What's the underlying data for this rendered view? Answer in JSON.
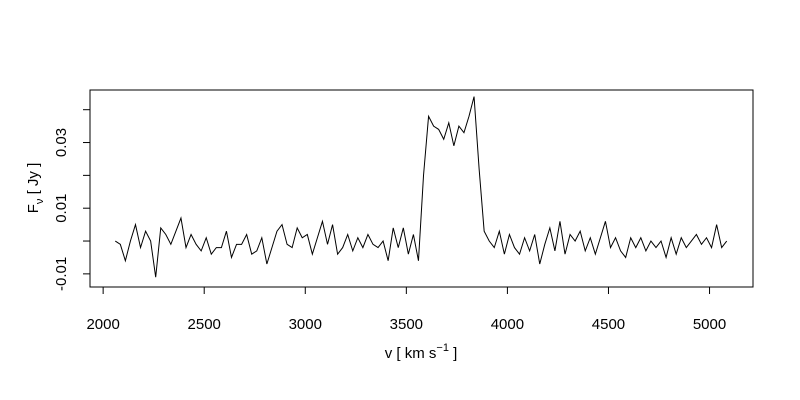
{
  "chart_data": {
    "type": "line",
    "xlabel": {
      "text": "v [ km s",
      "sup": "−1",
      "end": " ]"
    },
    "ylabel": {
      "text": "F",
      "sub": "ν",
      "end": " [ Jy ]"
    },
    "x": [
      2060,
      2085,
      2110,
      2135,
      2160,
      2185,
      2210,
      2235,
      2260,
      2285,
      2310,
      2335,
      2360,
      2385,
      2410,
      2435,
      2460,
      2485,
      2510,
      2535,
      2560,
      2585,
      2610,
      2635,
      2660,
      2685,
      2710,
      2735,
      2760,
      2785,
      2810,
      2835,
      2860,
      2885,
      2910,
      2935,
      2960,
      2985,
      3010,
      3035,
      3060,
      3085,
      3110,
      3135,
      3160,
      3185,
      3210,
      3235,
      3260,
      3285,
      3310,
      3335,
      3360,
      3385,
      3410,
      3435,
      3460,
      3485,
      3510,
      3535,
      3560,
      3585,
      3610,
      3635,
      3660,
      3685,
      3710,
      3735,
      3760,
      3785,
      3810,
      3835,
      3860,
      3885,
      3910,
      3935,
      3960,
      3985,
      4010,
      4035,
      4060,
      4085,
      4110,
      4135,
      4160,
      4185,
      4210,
      4235,
      4260,
      4285,
      4310,
      4335,
      4360,
      4385,
      4410,
      4435,
      4460,
      4485,
      4510,
      4535,
      4560,
      4585,
      4610,
      4635,
      4660,
      4685,
      4710,
      4735,
      4760,
      4785,
      4810,
      4835,
      4860,
      4885,
      4910,
      4935,
      4960,
      4985,
      5010,
      5035,
      5060,
      5085
    ],
    "series": [
      {
        "color": "#000000",
        "values": [
          0.0,
          -0.001,
          -0.006,
          0.0,
          0.005,
          -0.002,
          0.003,
          0.0,
          -0.011,
          0.004,
          0.002,
          -0.001,
          0.003,
          0.007,
          -0.002,
          0.002,
          -0.001,
          -0.003,
          0.001,
          -0.004,
          -0.002,
          -0.002,
          0.003,
          -0.005,
          -0.001,
          -0.001,
          0.002,
          -0.004,
          -0.003,
          0.001,
          -0.007,
          -0.002,
          0.003,
          0.005,
          -0.001,
          -0.002,
          0.004,
          0.001,
          0.002,
          -0.004,
          0.001,
          0.006,
          -0.001,
          0.005,
          -0.004,
          -0.002,
          0.002,
          -0.003,
          0.001,
          -0.002,
          0.002,
          -0.001,
          -0.002,
          0.0,
          -0.006,
          0.004,
          -0.002,
          0.004,
          -0.004,
          0.002,
          -0.006,
          0.02,
          0.038,
          0.035,
          0.034,
          0.031,
          0.036,
          0.029,
          0.035,
          0.033,
          0.038,
          0.044,
          0.022,
          0.003,
          0.0,
          -0.002,
          0.003,
          -0.004,
          0.002,
          -0.002,
          -0.004,
          0.001,
          -0.003,
          0.002,
          -0.007,
          -0.001,
          0.004,
          -0.003,
          0.006,
          -0.004,
          0.002,
          0.0,
          0.003,
          -0.003,
          0.001,
          -0.004,
          0.001,
          0.006,
          -0.002,
          0.001,
          -0.003,
          -0.005,
          0.001,
          -0.002,
          0.001,
          -0.003,
          0.0,
          -0.002,
          0.0,
          -0.005,
          0.001,
          -0.004,
          0.001,
          -0.002,
          0.0,
          0.002,
          -0.001,
          0.001,
          -0.002,
          0.005,
          -0.002,
          0.0
        ]
      }
    ],
    "xlim": [
      1935,
      5215
    ],
    "xticks": [
      2000,
      2500,
      3000,
      3500,
      4000,
      4500,
      5000
    ],
    "ylim": [
      -0.014,
      0.046
    ],
    "yticks": [
      -0.01,
      0.01,
      0.03
    ],
    "yminor": [
      0,
      0.02,
      0.04
    ]
  }
}
